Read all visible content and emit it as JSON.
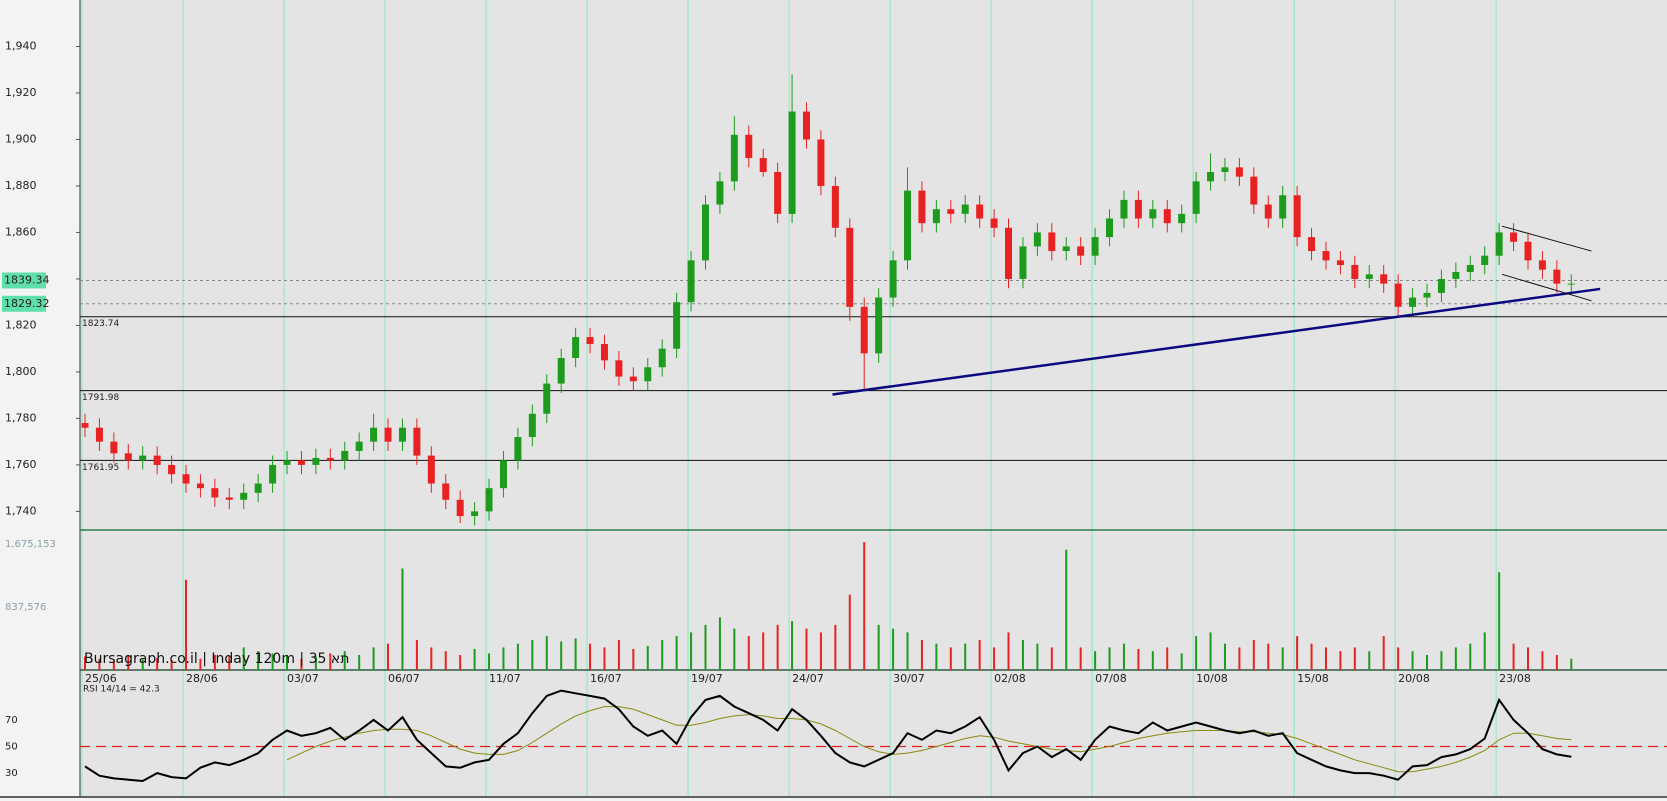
{
  "chart_data": {
    "type": "candlestick",
    "caption": "Bursagraph.co.il | Inday 120m | תא 35",
    "categories": [
      "25/06",
      null,
      null,
      null,
      null,
      null,
      null,
      "28/06",
      null,
      null,
      null,
      null,
      null,
      null,
      "03/07",
      null,
      null,
      null,
      null,
      null,
      null,
      "06/07",
      null,
      null,
      null,
      null,
      null,
      null,
      "11/07",
      null,
      null,
      null,
      null,
      null,
      null,
      "16/07",
      null,
      null,
      null,
      null,
      null,
      null,
      "19/07",
      null,
      null,
      null,
      null,
      null,
      null,
      "24/07",
      null,
      null,
      null,
      null,
      null,
      null,
      "30/07",
      null,
      null,
      null,
      null,
      null,
      null,
      "02/08",
      null,
      null,
      null,
      null,
      null,
      null,
      "07/08",
      null,
      null,
      null,
      null,
      null,
      null,
      "10/08",
      null,
      null,
      null,
      null,
      null,
      null,
      "15/08",
      null,
      null,
      null,
      null,
      null,
      null,
      "20/08",
      null,
      null,
      null,
      null,
      null,
      null,
      "23/08",
      null,
      null,
      null,
      null,
      null
    ],
    "open": [
      1778,
      1776,
      1770,
      1765,
      1762,
      1764,
      1760,
      1756,
      1752,
      1750,
      1746,
      1745,
      1748,
      1752,
      1760,
      1762,
      1760,
      1763,
      1762,
      1766,
      1770,
      1776,
      1770,
      1776,
      1764,
      1752,
      1745,
      1738,
      1740,
      1750,
      1762,
      1772,
      1782,
      1795,
      1806,
      1815,
      1812,
      1805,
      1798,
      1796,
      1802,
      1810,
      1830,
      1848,
      1872,
      1882,
      1902,
      1892,
      1886,
      1868,
      1912,
      1900,
      1880,
      1862,
      1828,
      1808,
      1832,
      1848,
      1878,
      1864,
      1870,
      1868,
      1872,
      1866,
      1862,
      1840,
      1854,
      1860,
      1852,
      1854,
      1850,
      1858,
      1866,
      1874,
      1866,
      1870,
      1864,
      1868,
      1882,
      1886,
      1888,
      1884,
      1872,
      1866,
      1876,
      1858,
      1852,
      1848,
      1846,
      1840,
      1842,
      1838,
      1828,
      1832,
      1834,
      1840,
      1843,
      1846,
      1850,
      1860,
      1856,
      1848,
      1844,
      1838
    ],
    "high": [
      1782,
      1780,
      1774,
      1769,
      1768,
      1768,
      1764,
      1760,
      1756,
      1754,
      1750,
      1752,
      1756,
      1764,
      1766,
      1766,
      1767,
      1767,
      1770,
      1774,
      1782,
      1780,
      1780,
      1780,
      1768,
      1756,
      1749,
      1744,
      1754,
      1766,
      1776,
      1786,
      1799,
      1810,
      1819,
      1819,
      1816,
      1809,
      1802,
      1806,
      1814,
      1834,
      1852,
      1876,
      1886,
      1910,
      1906,
      1896,
      1890,
      1928,
      1916,
      1904,
      1884,
      1866,
      1832,
      1836,
      1852,
      1888,
      1882,
      1874,
      1874,
      1876,
      1876,
      1870,
      1866,
      1858,
      1864,
      1864,
      1858,
      1858,
      1862,
      1870,
      1878,
      1878,
      1874,
      1874,
      1872,
      1886,
      1894,
      1892,
      1892,
      1888,
      1876,
      1880,
      1880,
      1862,
      1856,
      1852,
      1850,
      1846,
      1846,
      1842,
      1836,
      1838,
      1844,
      1847,
      1850,
      1854,
      1864,
      1864,
      1860,
      1852,
      1848,
      1842
    ],
    "low": [
      1772,
      1766,
      1761,
      1758,
      1758,
      1756,
      1752,
      1748,
      1746,
      1742,
      1741,
      1741,
      1744,
      1748,
      1756,
      1756,
      1756,
      1758,
      1758,
      1762,
      1766,
      1766,
      1766,
      1760,
      1748,
      1741,
      1735,
      1734,
      1736,
      1746,
      1758,
      1768,
      1778,
      1791,
      1802,
      1808,
      1801,
      1794,
      1792,
      1792,
      1798,
      1806,
      1826,
      1844,
      1868,
      1878,
      1888,
      1884,
      1864,
      1864,
      1896,
      1876,
      1858,
      1822,
      1792,
      1804,
      1828,
      1844,
      1860,
      1860,
      1864,
      1864,
      1862,
      1858,
      1836,
      1836,
      1850,
      1848,
      1848,
      1846,
      1846,
      1854,
      1862,
      1862,
      1862,
      1860,
      1860,
      1864,
      1878,
      1882,
      1880,
      1868,
      1862,
      1862,
      1854,
      1848,
      1844,
      1842,
      1836,
      1836,
      1834,
      1824,
      1824,
      1828,
      1830,
      1836,
      1839,
      1842,
      1846,
      1852,
      1844,
      1840,
      1834,
      1834
    ],
    "close": [
      1776,
      1770,
      1765,
      1762,
      1764,
      1760,
      1756,
      1752,
      1750,
      1746,
      1745,
      1748,
      1752,
      1760,
      1762,
      1760,
      1763,
      1762,
      1766,
      1770,
      1776,
      1770,
      1776,
      1764,
      1752,
      1745,
      1738,
      1740,
      1750,
      1762,
      1772,
      1782,
      1795,
      1806,
      1815,
      1812,
      1805,
      1798,
      1796,
      1802,
      1810,
      1830,
      1848,
      1872,
      1882,
      1902,
      1892,
      1886,
      1868,
      1912,
      1900,
      1880,
      1862,
      1828,
      1808,
      1832,
      1848,
      1878,
      1864,
      1870,
      1868,
      1872,
      1866,
      1862,
      1840,
      1854,
      1860,
      1852,
      1854,
      1850,
      1858,
      1866,
      1874,
      1866,
      1870,
      1864,
      1868,
      1882,
      1886,
      1888,
      1884,
      1872,
      1866,
      1876,
      1858,
      1852,
      1848,
      1846,
      1840,
      1842,
      1838,
      1828,
      1832,
      1834,
      1840,
      1843,
      1846,
      1850,
      1860,
      1856,
      1848,
      1844,
      1838,
      1838
    ],
    "up_color": "#1c9b1c",
    "down_color": "#e82222",
    "grid_color": "#86ecc0",
    "ylim": [
      1732,
      1960
    ],
    "yticks": [
      {
        "value": 1740,
        "label": "1,740"
      },
      {
        "value": 1760,
        "label": "1,760"
      },
      {
        "value": 1780,
        "label": "1,780"
      },
      {
        "value": 1800,
        "label": "1,800"
      },
      {
        "value": 1820,
        "label": "1,820"
      },
      {
        "value": 1840,
        "label": "1,840"
      },
      {
        "value": 1860,
        "label": "1,860"
      },
      {
        "value": 1880,
        "label": "1,880"
      },
      {
        "value": 1900,
        "label": "1,900"
      },
      {
        "value": 1920,
        "label": "1,920"
      },
      {
        "value": 1940,
        "label": "1,940"
      }
    ],
    "hlines": [
      1823.74,
      1791.98,
      1761.95
    ],
    "markers": [
      1839.34,
      1829.32
    ],
    "marker_color": "#5fe0aa",
    "trendlines": [
      {
        "x": [
          51.8,
          105
        ],
        "y": [
          1790.3,
          1835.7
        ],
        "color": "#0a0a80"
      },
      {
        "x": [
          98.2,
          104.4
        ],
        "y": [
          1862.7,
          1852
        ],
        "color": "#111111"
      },
      {
        "x": [
          98.2,
          104.4
        ],
        "y": [
          1842,
          1830.6
        ],
        "color": "#111111"
      }
    ],
    "volume": {
      "values": [
        180000,
        150000,
        120000,
        200000,
        140000,
        160000,
        130000,
        1200000,
        150000,
        200000,
        180000,
        300000,
        250000,
        220000,
        200000,
        150000,
        180000,
        220000,
        250000,
        200000,
        300000,
        350000,
        1350000,
        400000,
        300000,
        250000,
        200000,
        280000,
        220000,
        300000,
        350000,
        400000,
        450000,
        380000,
        420000,
        350000,
        300000,
        400000,
        280000,
        320000,
        400000,
        450000,
        500000,
        600000,
        700000,
        550000,
        450000,
        500000,
        600000,
        650000,
        550000,
        500000,
        600000,
        1000000,
        1700000,
        600000,
        550000,
        500000,
        400000,
        350000,
        300000,
        350000,
        400000,
        300000,
        500000,
        400000,
        350000,
        300000,
        1600000,
        300000,
        250000,
        300000,
        350000,
        280000,
        250000,
        300000,
        220000,
        450000,
        500000,
        350000,
        300000,
        400000,
        350000,
        300000,
        450000,
        350000,
        300000,
        250000,
        300000,
        250000,
        450000,
        300000,
        250000,
        200000,
        250000,
        300000,
        350000,
        500000,
        1300000,
        350000,
        300000,
        250000,
        200000,
        150000
      ],
      "ylim": [
        0,
        1848000
      ],
      "yticks": [
        {
          "value": 837576,
          "label": "837,576"
        },
        {
          "value": 1675153,
          "label": "1,675,153"
        }
      ]
    },
    "rsi": {
      "label": "RSI 14/14 = 42.3",
      "values": [
        35,
        28,
        26,
        25,
        24,
        30,
        27,
        26,
        34,
        38,
        36,
        40,
        45,
        55,
        62,
        58,
        60,
        64,
        55,
        62,
        70,
        62,
        72,
        55,
        45,
        35,
        34,
        38,
        40,
        52,
        60,
        75,
        88,
        92,
        90,
        88,
        86,
        78,
        65,
        58,
        62,
        52,
        72,
        85,
        88,
        80,
        75,
        70,
        62,
        78,
        70,
        58,
        45,
        38,
        35,
        40,
        45,
        60,
        55,
        62,
        60,
        65,
        72,
        55,
        32,
        45,
        50,
        42,
        48,
        40,
        55,
        65,
        62,
        60,
        68,
        62,
        65,
        68,
        65,
        62,
        60,
        62,
        58,
        60,
        45,
        40,
        35,
        32,
        30,
        30,
        28,
        25,
        35,
        36,
        42,
        44,
        48,
        56,
        85,
        70,
        60,
        48,
        44,
        42.3
      ],
      "ma": [
        null,
        null,
        null,
        null,
        null,
        null,
        null,
        null,
        null,
        null,
        null,
        null,
        null,
        null,
        40,
        45,
        50,
        54,
        57,
        60,
        62,
        63,
        63,
        62,
        58,
        53,
        48,
        45,
        44,
        44,
        47,
        53,
        60,
        67,
        73,
        77,
        80,
        80,
        78,
        74,
        70,
        66,
        66,
        68,
        71,
        73,
        74,
        73,
        71,
        71,
        70,
        67,
        62,
        56,
        50,
        46,
        44,
        45,
        47,
        50,
        53,
        56,
        58,
        57,
        54,
        52,
        50,
        48,
        47,
        46,
        48,
        50,
        53,
        56,
        58,
        60,
        61,
        62,
        62,
        62,
        61,
        61,
        60,
        59,
        56,
        52,
        48,
        44,
        40,
        37,
        34,
        31,
        31,
        33,
        35,
        38,
        42,
        47,
        55,
        60,
        60,
        58,
        56,
        55
      ],
      "ylim": [
        12,
        106
      ],
      "yticks": [
        30,
        50,
        70
      ],
      "ref": 50,
      "color": "#000000",
      "ma_color": "#8a8a10",
      "ref_color": "#e02020"
    }
  }
}
